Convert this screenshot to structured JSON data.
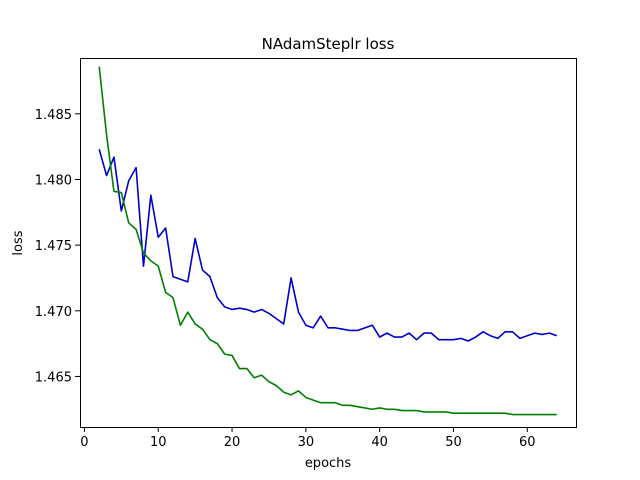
{
  "chart_data": {
    "type": "line",
    "title": "NAdamSteplr loss",
    "xlabel": "epochs",
    "ylabel": "loss",
    "xlim": [
      -0.6,
      66.6
    ],
    "ylim": [
      1.46115,
      1.48925
    ],
    "xticks": [
      0,
      10,
      20,
      30,
      40,
      50,
      60
    ],
    "yticks": [
      1.465,
      1.47,
      1.475,
      1.48,
      1.485
    ],
    "ytick_labels": [
      "1.465",
      "1.470",
      "1.475",
      "1.480",
      "1.485"
    ],
    "grid": false,
    "legend": "none",
    "x": [
      2,
      3,
      4,
      5,
      6,
      7,
      8,
      9,
      10,
      11,
      12,
      13,
      14,
      15,
      16,
      17,
      18,
      19,
      20,
      21,
      22,
      23,
      24,
      25,
      26,
      27,
      28,
      29,
      30,
      31,
      32,
      33,
      34,
      35,
      36,
      37,
      38,
      39,
      40,
      41,
      42,
      43,
      44,
      45,
      46,
      47,
      48,
      49,
      50,
      51,
      52,
      53,
      54,
      55,
      56,
      57,
      58,
      59,
      60,
      61,
      62,
      63,
      64
    ],
    "series": [
      {
        "color": "#0000cc",
        "values": [
          1.4823,
          1.4803,
          1.4817,
          1.4776,
          1.4799,
          1.4809,
          1.4734,
          1.4788,
          1.4756,
          1.4763,
          1.4726,
          1.4724,
          1.4722,
          1.4755,
          1.4731,
          1.4726,
          1.471,
          1.4703,
          1.4701,
          1.4702,
          1.4701,
          1.4699,
          1.4701,
          1.4698,
          1.4694,
          1.469,
          1.4725,
          1.4699,
          1.4689,
          1.4687,
          1.4696,
          1.4687,
          1.4687,
          1.4686,
          1.4685,
          1.4685,
          1.4687,
          1.4689,
          1.468,
          1.4683,
          1.468,
          1.468,
          1.4683,
          1.4678,
          1.4683,
          1.4683,
          1.4678,
          1.4678,
          1.4678,
          1.4679,
          1.4677,
          1.468,
          1.4684,
          1.4681,
          1.4679,
          1.4684,
          1.4684,
          1.4679,
          1.4681,
          1.4683,
          1.4682,
          1.4683,
          1.4681
        ]
      },
      {
        "color": "#008000",
        "values": [
          1.4886,
          1.4834,
          1.4791,
          1.479,
          1.4767,
          1.4762,
          1.4744,
          1.4738,
          1.4734,
          1.4714,
          1.471,
          1.4689,
          1.4699,
          1.469,
          1.4686,
          1.4678,
          1.4675,
          1.4667,
          1.4666,
          1.4656,
          1.4656,
          1.4649,
          1.4651,
          1.4646,
          1.4643,
          1.4638,
          1.4636,
          1.4639,
          1.4634,
          1.4632,
          1.463,
          1.463,
          1.463,
          1.4628,
          1.4628,
          1.4627,
          1.4626,
          1.4625,
          1.4626,
          1.4625,
          1.4625,
          1.4624,
          1.4624,
          1.4624,
          1.4623,
          1.4623,
          1.4623,
          1.4623,
          1.4622,
          1.4622,
          1.4622,
          1.4622,
          1.4622,
          1.4622,
          1.4622,
          1.4622,
          1.4621,
          1.4621,
          1.4621,
          1.4621,
          1.4621,
          1.4621,
          1.4621
        ]
      }
    ]
  }
}
